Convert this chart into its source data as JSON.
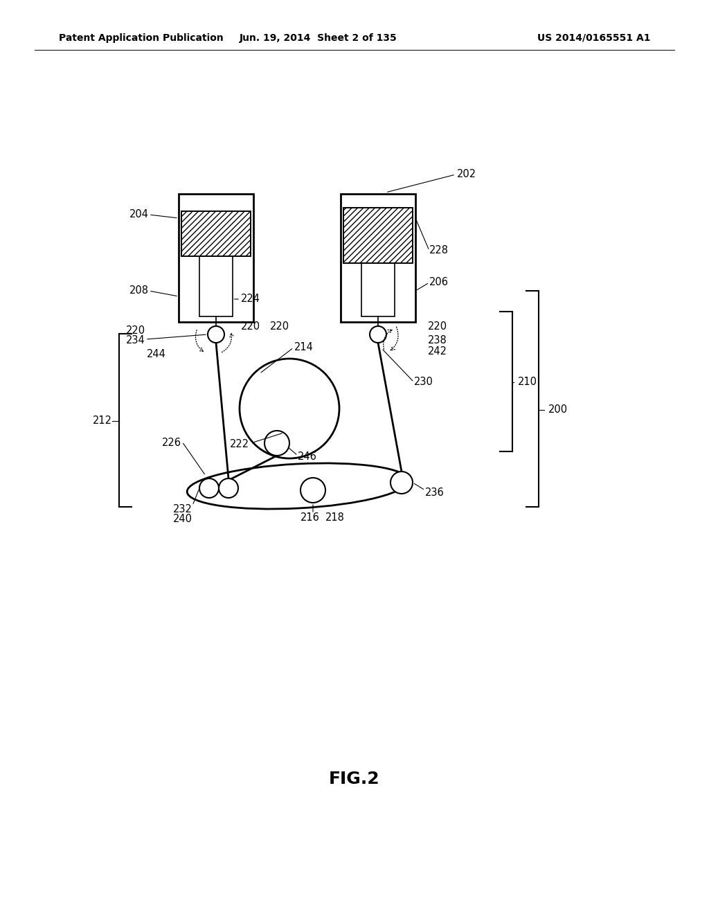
{
  "bg_color": "#ffffff",
  "line_color": "#000000",
  "header_left": "Patent Application Publication",
  "header_mid": "Jun. 19, 2014  Sheet 2 of 135",
  "header_right": "US 2014/0165551 A1",
  "fig_label": "FIG.2"
}
